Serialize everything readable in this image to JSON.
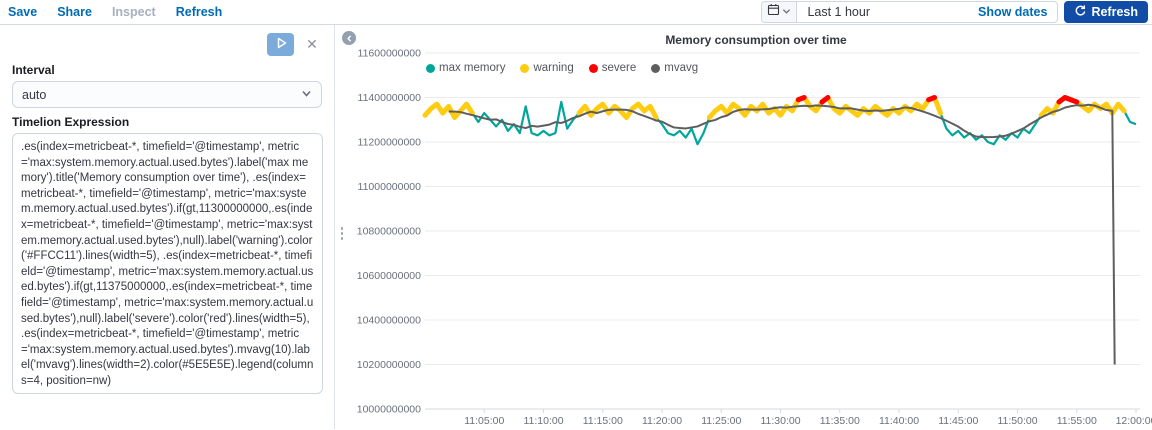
{
  "topnav": {
    "save": "Save",
    "share": "Share",
    "inspect": "Inspect",
    "refresh": "Refresh"
  },
  "timepicker": {
    "range": "Last 1 hour",
    "show_dates": "Show dates",
    "refresh_button": "Refresh"
  },
  "editor": {
    "interval_label": "Interval",
    "interval_value": "auto",
    "expression_label": "Timelion Expression",
    "expression": ".es(index=metricbeat-*, timefield='@timestamp', metric='max:system.memory.actual.used.bytes').label('max memory').title('Memory consumption over time'), .es(index=metricbeat-*, timefield='@timestamp', metric='max:system.memory.actual.used.bytes').if(gt,11300000000,.es(index=metricbeat-*, timefield='@timestamp', metric='max:system.memory.actual.used.bytes'),null).label('warning').color('#FFCC11').lines(width=5), .es(index=metricbeat-*, timefield='@timestamp', metric='max:system.memory.actual.used.bytes').if(gt,11375000000,.es(index=metricbeat-*, timefield='@timestamp', metric='max:system.memory.actual.used.bytes'),null).label('severe').color('red').lines(width=5), .es(index=metricbeat-*, timefield='@timestamp', metric='max:system.memory.actual.used.bytes').mvavg(10).label('mvavg').lines(width=2).color(#5E5E5E).legend(columns=4, position=nw)"
  },
  "colors": {
    "link_blue": "#006BB4",
    "refresh_button_bg": "#114DA6",
    "play_button_bg": "#7AABDB",
    "grid": "#e9ebef",
    "axis_text": "#69707d"
  },
  "chart_data": {
    "type": "line",
    "title": "Memory consumption over time",
    "unit": "bytes",
    "value_multiplier": 1000000000,
    "time_range": {
      "start": "11:00:00",
      "end": "12:00:00",
      "step_seconds": 30
    },
    "ylim": [
      10000000000,
      11600000000
    ],
    "y_tick_values": [
      11600000000,
      11400000000,
      11200000000,
      11000000000,
      10800000000,
      10600000000,
      10400000000,
      10200000000,
      10000000000
    ],
    "x_tick_labels": [
      "11:05:00",
      "11:10:00",
      "11:15:00",
      "11:20:00",
      "11:25:00",
      "11:30:00",
      "11:35:00",
      "11:40:00",
      "11:45:00",
      "11:50:00",
      "11:55:00",
      "12:00:00"
    ],
    "legend": {
      "position": "nw",
      "columns": 4
    },
    "series": [
      {
        "name": "max memory",
        "color": "#00A69B",
        "line_width": 2.2,
        "values_e9": [
          11.32,
          11.35,
          11.37,
          11.33,
          11.36,
          11.31,
          11.34,
          11.37,
          11.33,
          11.29,
          11.33,
          11.3,
          11.27,
          11.3,
          11.25,
          11.28,
          11.24,
          11.36,
          11.24,
          11.23,
          11.25,
          11.23,
          11.24,
          11.38,
          11.26,
          11.3,
          11.33,
          11.36,
          11.32,
          11.35,
          11.37,
          11.33,
          11.36,
          11.34,
          11.31,
          11.35,
          11.37,
          11.34,
          11.36,
          11.31,
          11.28,
          11.24,
          11.23,
          11.25,
          11.22,
          11.26,
          11.19,
          11.24,
          11.31,
          11.34,
          11.36,
          11.33,
          11.37,
          11.35,
          11.32,
          11.36,
          11.34,
          11.37,
          11.33,
          11.35,
          11.32,
          11.36,
          11.34,
          11.39,
          11.4,
          11.36,
          11.34,
          11.38,
          11.4,
          11.35,
          11.33,
          11.36,
          11.34,
          11.32,
          11.35,
          11.33,
          11.36,
          11.34,
          11.32,
          11.35,
          11.33,
          11.36,
          11.34,
          11.37,
          11.35,
          11.39,
          11.4,
          11.33,
          11.26,
          11.23,
          11.25,
          11.22,
          11.24,
          11.21,
          11.23,
          11.2,
          11.19,
          11.23,
          11.21,
          11.24,
          11.22,
          11.26,
          11.24,
          11.28,
          11.32,
          11.35,
          11.33,
          11.38,
          11.4,
          11.39,
          11.38,
          11.36,
          11.34,
          11.37,
          11.35,
          11.37,
          11.33,
          11.37,
          11.34,
          11.29,
          11.28
        ]
      },
      {
        "name": "warning",
        "color": "#FFCC11",
        "line_width": 5,
        "derived_from": "max memory",
        "rule": "value > threshold",
        "threshold_e9": 11.3
      },
      {
        "name": "severe",
        "color": "#FF0000",
        "line_width": 5,
        "derived_from": "max memory",
        "rule": "value > threshold",
        "threshold_e9": 11.375
      },
      {
        "name": "mvavg",
        "color": "#5E5E5E",
        "line_width": 2,
        "derived_from": "max memory",
        "rule": "moving average window 10",
        "end_drop": {
          "minute": 58.2,
          "value_e9": 10.2
        }
      }
    ]
  }
}
